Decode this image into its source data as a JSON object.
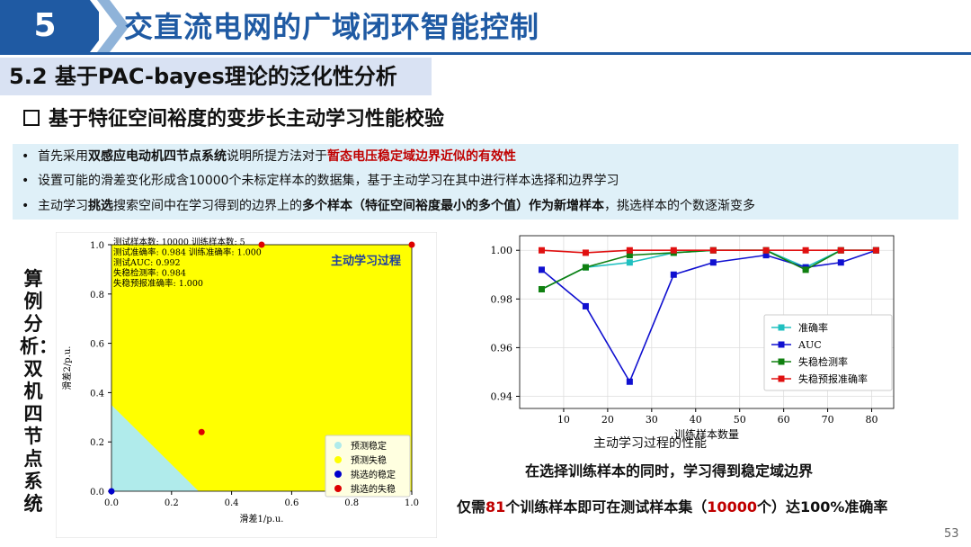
{
  "header": {
    "number": "5",
    "title": "交直流电网的广域闭环智能控制"
  },
  "section": {
    "title": "5.2 基于PAC-bayes理论的泛化性分析"
  },
  "subtitle": "基于特征空间裕度的变步长主动学习性能校验",
  "bullets": [
    {
      "pre": "首先采用",
      "bold": "双感应电动机四节点系统",
      "mid": "说明所提方法对于",
      "red": "暂态电压稳定域边界近似的有效性",
      "post": ""
    },
    {
      "text": "设置可能的滑差变化形成含10000个未标定样本的数据集，基于主动学习在其中进行样本选择和边界学习"
    },
    {
      "pre": "主动学习",
      "bold": "挑选",
      "mid": "搜索空间中在学习得到的边界上的",
      "bold2": "多个样本（特征空间裕度最小的多个值）作为新增样本",
      "post": "，挑选样本的个数逐渐变多"
    }
  ],
  "side_label": "算例分析：双机四节点系统",
  "chart1": {
    "info_lines": [
      "测试样本数: 10000 训练样本数: 5",
      "测试准确率: 0.984 训练准确率: 1.000",
      "测试AUC: 0.992",
      "失稳检测率: 0.984",
      "失稳预报准确率: 1.000"
    ],
    "title": "主动学习过程",
    "xlabel": "滑差1/p.u.",
    "ylabel": "滑差2/p.u.",
    "ticks": [
      "0.0",
      "0.2",
      "0.4",
      "0.6",
      "0.8",
      "1.0"
    ],
    "legend": [
      "预测稳定",
      "预测失稳",
      "挑选的稳定",
      "挑选的失稳"
    ],
    "colors": {
      "stable": "#b0ebeb",
      "unstable": "#ffff00",
      "pick_stable": "#0000cc",
      "pick_unstable": "#dd0000"
    },
    "points": [
      {
        "x": 0.0,
        "y": 0.0,
        "kind": "pick_stable"
      },
      {
        "x": 0.3,
        "y": 0.24,
        "kind": "pick_unstable"
      },
      {
        "x": 0.5,
        "y": 1.0,
        "kind": "pick_unstable"
      },
      {
        "x": 1.0,
        "y": 1.0,
        "kind": "pick_unstable"
      }
    ],
    "stable_boundary": [
      [
        0,
        0.35
      ],
      [
        0.29,
        0
      ]
    ]
  },
  "chart_data": {
    "type": "line",
    "x": [
      5,
      15,
      25,
      35,
      44,
      56,
      65,
      73,
      81
    ],
    "xlabel": "训练样本数量",
    "caption": "主动学习过程的性能",
    "xlim": [
      0,
      85
    ],
    "ylim": [
      0.935,
      1.006
    ],
    "xticks": [
      10,
      20,
      30,
      40,
      50,
      60,
      70,
      80
    ],
    "yticks": [
      0.94,
      0.96,
      0.98,
      1.0
    ],
    "ytick_labels": [
      "0.94",
      "0.96",
      "0.98",
      "1.00"
    ],
    "grid": true,
    "legend_position": "lower-right",
    "series": [
      {
        "name": "准确率",
        "color": "#20c0c0",
        "values": [
          0.984,
          0.993,
          0.995,
          0.999,
          1.0,
          1.0,
          0.993,
          1.0,
          1.0
        ]
      },
      {
        "name": "AUC",
        "color": "#1010d0",
        "values": [
          0.992,
          0.977,
          0.946,
          0.99,
          0.995,
          0.998,
          0.993,
          0.995,
          1.0
        ]
      },
      {
        "name": "失稳检测率",
        "color": "#108010",
        "values": [
          0.984,
          0.993,
          0.998,
          0.999,
          1.0,
          1.0,
          0.992,
          1.0,
          1.0
        ]
      },
      {
        "name": "失稳预报准确率",
        "color": "#e01010",
        "values": [
          1.0,
          0.999,
          1.0,
          1.0,
          1.0,
          1.0,
          1.0,
          1.0,
          1.0
        ]
      }
    ]
  },
  "notes": {
    "line1": "在选择训练样本的同时，学习得到稳定域边界",
    "line2_a": "仅需",
    "line2_b": "81",
    "line2_c": "个训练样本即可在测试样本集（",
    "line2_d": "10000",
    "line2_e": "个）达100%准确率"
  },
  "page_number": "53"
}
